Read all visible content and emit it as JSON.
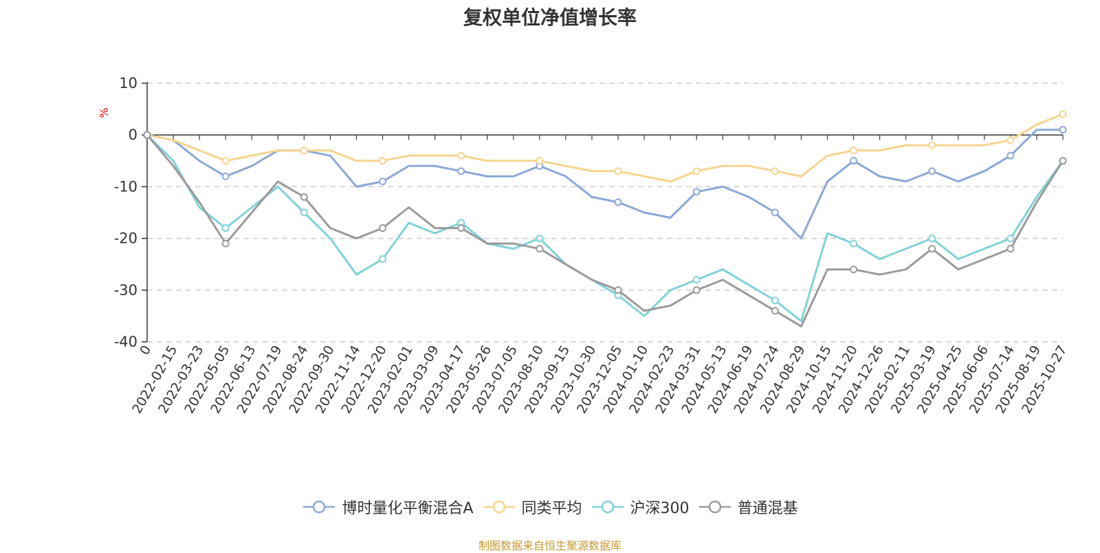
{
  "chart_data": {
    "type": "line",
    "title": "复权单位净值增长率",
    "ylabel": "%",
    "ylim": [
      -40,
      10
    ],
    "yticks": [
      "10",
      "0",
      "-10",
      "-20",
      "-30",
      "-40"
    ],
    "grid": true,
    "legend_position": "bottom",
    "x": [
      "0",
      "2022-02-15",
      "2022-03-23",
      "2022-05-05",
      "2022-06-13",
      "2022-07-19",
      "2022-08-24",
      "2022-09-30",
      "2022-11-14",
      "2022-12-20",
      "2023-02-01",
      "2023-03-09",
      "2023-04-17",
      "2023-05-26",
      "2023-07-05",
      "2023-08-10",
      "2023-09-15",
      "2023-10-30",
      "2023-12-05",
      "2024-01-10",
      "2024-02-23",
      "2024-03-31",
      "2024-05-13",
      "2024-06-19",
      "2024-07-24",
      "2024-08-29",
      "2024-10-15",
      "2024-11-20",
      "2024-12-26",
      "2025-02-11",
      "2025-03-19",
      "2025-04-25",
      "2025-06-06",
      "2025-07-14",
      "2025-08-19",
      "2025-10-27"
    ],
    "series": [
      {
        "name": "博时量化平衡混合A",
        "color": "#8aa8d8",
        "values": [
          0,
          -1,
          -5,
          -8,
          -6,
          -3,
          -3,
          -4,
          -10,
          -9,
          -6,
          -6,
          -7,
          -8,
          -8,
          -6,
          -8,
          -12,
          -13,
          -15,
          -16,
          -11,
          -10,
          -12,
          -15,
          -20,
          -9,
          -5,
          -8,
          -9,
          -7,
          -9,
          -7,
          -4,
          1,
          1
        ]
      },
      {
        "name": "同类平均",
        "color": "#f8d38e",
        "values": [
          0,
          -1,
          -3,
          -5,
          -4,
          -3,
          -3,
          -3,
          -5,
          -5,
          -4,
          -4,
          -4,
          -5,
          -5,
          -5,
          -6,
          -7,
          -7,
          -8,
          -9,
          -7,
          -6,
          -6,
          -7,
          -8,
          -4,
          -3,
          -3,
          -2,
          -2,
          -2,
          -2,
          -1,
          2,
          4
        ]
      },
      {
        "name": "沪深300",
        "color": "#7fd2d9",
        "values": [
          0,
          -5,
          -14,
          -18,
          -14,
          -10,
          -15,
          -20,
          -27,
          -24,
          -17,
          -19,
          -17,
          -21,
          -22,
          -20,
          -25,
          -28,
          -31,
          -35,
          -30,
          -28,
          -26,
          -29,
          -32,
          -36,
          -19,
          -21,
          -24,
          -22,
          -20,
          -24,
          -22,
          -20,
          -12,
          -5
        ]
      },
      {
        "name": "普通混基",
        "color": "#9a9a9a",
        "values": [
          0,
          -6,
          -13,
          -21,
          -15,
          -9,
          -12,
          -18,
          -20,
          -18,
          -14,
          -18,
          -18,
          -21,
          -21,
          -22,
          -25,
          -28,
          -30,
          -34,
          -33,
          -30,
          -28,
          -31,
          -34,
          -37,
          -26,
          -26,
          -27,
          -26,
          -22,
          -26,
          -24,
          -22,
          -13,
          -5
        ]
      }
    ]
  },
  "footer": {
    "source": "制图数据来自恒生聚源数据库"
  }
}
